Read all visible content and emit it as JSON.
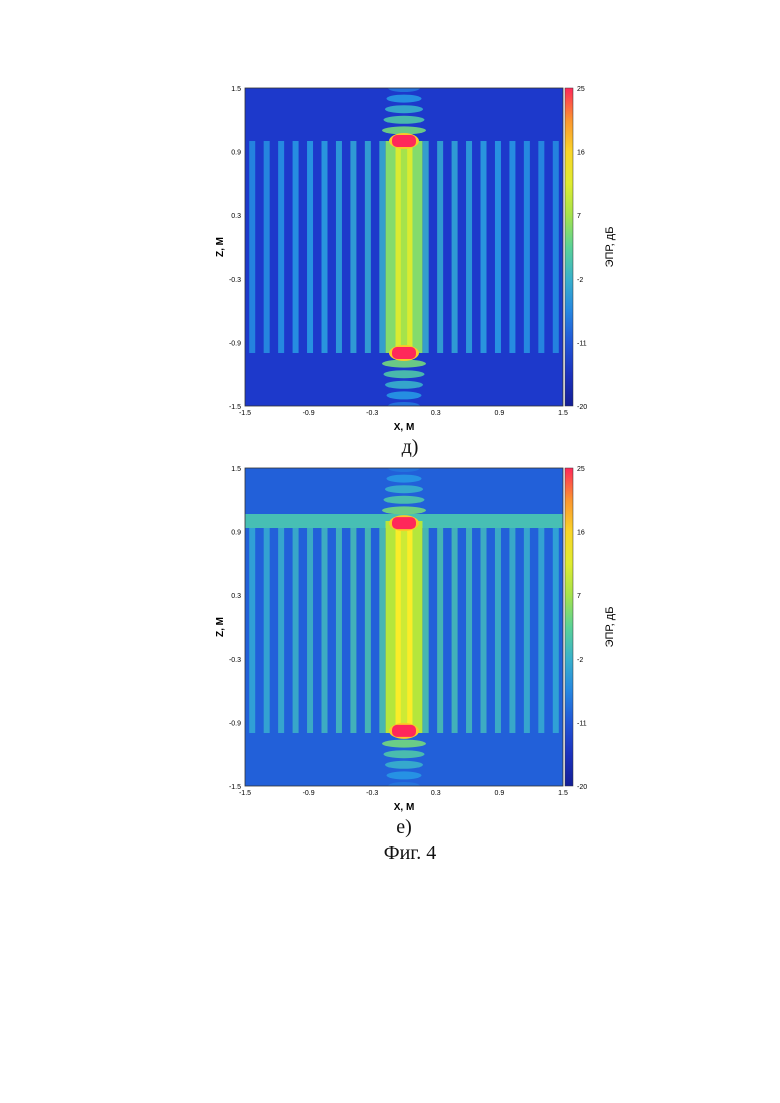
{
  "figure_title": "Фиг. 4",
  "panels": [
    {
      "caption": "д)"
    },
    {
      "caption": "е)"
    }
  ],
  "chart_data": [
    {
      "type": "heatmap",
      "panel": "д)",
      "xlabel": "X, M",
      "ylabel": "Z, M",
      "colorbar_label": "ЭПР, дБ",
      "xlim": [
        -1.5,
        1.5
      ],
      "ylim": [
        -1.5,
        1.5
      ],
      "x_ticks": [
        "-1.5",
        "-0.9",
        "-0.3",
        "0.3",
        "0.9",
        "1.5"
      ],
      "y_ticks": [
        "1.5",
        "0.9",
        "0.3",
        "-0.3",
        "-0.9",
        "-1.5"
      ],
      "colorbar_ticks": [
        "25",
        "16",
        "7",
        "-2",
        "-11",
        "-20"
      ],
      "colorbar_range": [
        -20,
        25
      ],
      "colormap": "jet",
      "colors": {
        "low": "#1a2fc0",
        "mid": "#c8e640",
        "high": "#ff2a5a"
      },
      "features": {
        "central_strip_x_range": [
          -0.08,
          0.08
        ],
        "central_strip_z_range": [
          -1.0,
          1.0
        ],
        "central_strip_level_db": 7,
        "hotspots": [
          {
            "x": 0.0,
            "z": 1.0,
            "level_db": 25
          },
          {
            "x": 0.0,
            "z": -1.0,
            "level_db": 25
          }
        ],
        "background_level_db": -14,
        "stripe_region_z_range": [
          -1.0,
          1.0
        ],
        "stripe_level_db": -6,
        "horizontal_band": false
      }
    },
    {
      "type": "heatmap",
      "panel": "е)",
      "xlabel": "X, M",
      "ylabel": "Z, M",
      "colorbar_label": "ЭПР, дБ",
      "xlim": [
        -1.5,
        1.5
      ],
      "ylim": [
        -1.5,
        1.5
      ],
      "x_ticks": [
        "-1.5",
        "-0.9",
        "-0.3",
        "0.3",
        "0.9",
        "1.5"
      ],
      "y_ticks": [
        "1.5",
        "0.9",
        "0.3",
        "-0.3",
        "-0.9",
        "-1.5"
      ],
      "colorbar_ticks": [
        "25",
        "16",
        "7",
        "-2",
        "-11",
        "-20"
      ],
      "colorbar_range": [
        -20,
        25
      ],
      "colormap": "jet",
      "colors": {
        "low": "#1a2fc0",
        "mid": "#c8e640",
        "high": "#ff2a5a"
      },
      "features": {
        "central_strip_x_range": [
          -0.08,
          0.08
        ],
        "central_strip_z_range": [
          -1.0,
          1.0
        ],
        "central_strip_level_db": 10,
        "hotspots": [
          {
            "x": 0.0,
            "z": 0.98,
            "level_db": 25
          },
          {
            "x": 0.0,
            "z": -0.98,
            "level_db": 25
          }
        ],
        "background_level_db": -10,
        "stripe_region_z_range": [
          -1.0,
          1.0
        ],
        "stripe_level_db": -3,
        "horizontal_band": true,
        "horizontal_band_z": 1.0,
        "horizontal_band_level_db": 0
      }
    }
  ]
}
